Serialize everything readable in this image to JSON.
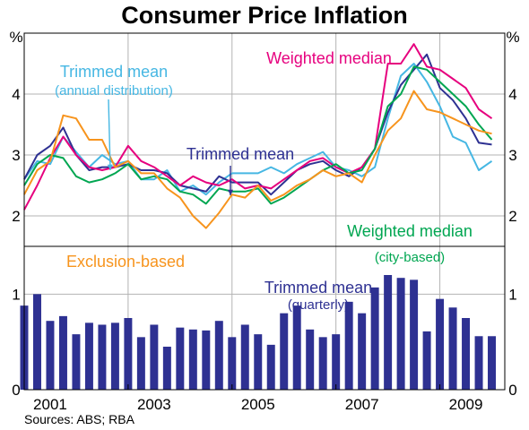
{
  "title": "Consumer Price Inflation",
  "source": "Sources: ABS; RBA",
  "chart_data": {
    "type": "line",
    "unit_label": "%",
    "x_ticks": [
      "2001",
      "2003",
      "2005",
      "2007",
      "2009"
    ],
    "x_tick_years": [
      2001,
      2003,
      2005,
      2007,
      2009
    ],
    "xlim": [
      2000.5,
      2009.75
    ],
    "upper_panel": {
      "ylim": [
        1.5,
        5.0
      ],
      "y_ticks": [
        2,
        3,
        4
      ],
      "grid": true,
      "series": [
        {
          "label": "Trimmed mean",
          "sublabel": "(annual distribution)",
          "color": "#46b7e3",
          "x": [
            2000.5,
            2000.75,
            2001.0,
            2001.25,
            2001.5,
            2001.75,
            2002.0,
            2002.25,
            2002.5,
            2002.75,
            2003.0,
            2003.25,
            2003.5,
            2003.75,
            2004.0,
            2004.25,
            2004.5,
            2004.75,
            2005.0,
            2005.25,
            2005.5,
            2005.75,
            2006.0,
            2006.25,
            2006.5,
            2006.75,
            2007.0,
            2007.25,
            2007.5,
            2007.75,
            2008.0,
            2008.25,
            2008.5,
            2008.75,
            2009.0,
            2009.25,
            2009.5
          ],
          "values": [
            2.6,
            2.9,
            2.85,
            3.3,
            3.05,
            2.8,
            3.0,
            2.85,
            2.9,
            2.6,
            2.6,
            2.75,
            2.4,
            2.5,
            2.35,
            2.55,
            2.7,
            2.7,
            2.7,
            2.8,
            2.7,
            2.85,
            2.95,
            3.05,
            2.8,
            2.75,
            2.65,
            2.8,
            3.6,
            4.3,
            4.5,
            4.2,
            3.8,
            3.3,
            3.2,
            2.75,
            2.9
          ]
        },
        {
          "label": "Trimmed mean",
          "color": "#2e3192",
          "x": [
            2000.5,
            2000.75,
            2001.0,
            2001.25,
            2001.5,
            2001.75,
            2002.0,
            2002.25,
            2002.5,
            2002.75,
            2003.0,
            2003.25,
            2003.5,
            2003.75,
            2004.0,
            2004.25,
            2004.5,
            2004.75,
            2005.0,
            2005.25,
            2005.5,
            2005.75,
            2006.0,
            2006.25,
            2006.5,
            2006.75,
            2007.0,
            2007.25,
            2007.5,
            2007.75,
            2008.0,
            2008.25,
            2008.5,
            2008.75,
            2009.0,
            2009.25,
            2009.5
          ],
          "values": [
            2.6,
            3.0,
            3.15,
            3.45,
            3.0,
            2.75,
            2.8,
            2.8,
            2.85,
            2.75,
            2.75,
            2.7,
            2.5,
            2.45,
            2.4,
            2.65,
            2.55,
            2.55,
            2.55,
            2.35,
            2.55,
            2.75,
            2.85,
            2.9,
            2.75,
            2.65,
            2.8,
            3.1,
            3.7,
            4.15,
            4.4,
            4.65,
            4.1,
            3.9,
            3.6,
            3.2,
            3.17
          ]
        },
        {
          "label": "Weighted median",
          "color": "#e6007e",
          "x": [
            2000.5,
            2000.75,
            2001.0,
            2001.25,
            2001.5,
            2001.75,
            2002.0,
            2002.25,
            2002.5,
            2002.75,
            2003.0,
            2003.25,
            2003.5,
            2003.75,
            2004.0,
            2004.25,
            2004.5,
            2004.75,
            2005.0,
            2005.25,
            2005.5,
            2005.75,
            2006.0,
            2006.25,
            2006.5,
            2006.75,
            2007.0,
            2007.25,
            2007.5,
            2007.75,
            2008.0,
            2008.25,
            2008.5,
            2008.75,
            2009.0,
            2009.25,
            2009.5
          ],
          "values": [
            2.1,
            2.5,
            2.95,
            3.3,
            3.0,
            2.8,
            2.75,
            2.8,
            3.15,
            2.9,
            2.8,
            2.65,
            2.5,
            2.65,
            2.55,
            2.5,
            2.6,
            2.45,
            2.5,
            2.45,
            2.6,
            2.75,
            2.9,
            2.95,
            2.8,
            2.7,
            2.8,
            3.1,
            4.5,
            4.5,
            4.82,
            4.45,
            4.4,
            4.25,
            4.1,
            3.75,
            3.6
          ]
        },
        {
          "label": "Weighted median",
          "sublabel": "(city-based)",
          "color": "#00a651",
          "x": [
            2000.5,
            2000.75,
            2001.0,
            2001.25,
            2001.5,
            2001.75,
            2002.0,
            2002.25,
            2002.5,
            2002.75,
            2003.0,
            2003.25,
            2003.5,
            2003.75,
            2004.0,
            2004.25,
            2004.5,
            2004.75,
            2005.0,
            2005.25,
            2005.5,
            2005.75,
            2006.0,
            2006.25,
            2006.5,
            2006.75,
            2007.0,
            2007.25,
            2007.5,
            2007.75,
            2008.0,
            2008.25,
            2008.5,
            2008.75,
            2009.0,
            2009.25,
            2009.5
          ],
          "values": [
            2.5,
            2.85,
            3.0,
            2.95,
            2.65,
            2.55,
            2.6,
            2.7,
            2.85,
            2.6,
            2.65,
            2.6,
            2.4,
            2.35,
            2.2,
            2.45,
            2.4,
            2.4,
            2.45,
            2.2,
            2.3,
            2.45,
            2.6,
            2.75,
            2.85,
            2.7,
            2.75,
            3.1,
            3.8,
            4.0,
            4.45,
            4.4,
            4.2,
            4.0,
            3.8,
            3.5,
            3.25
          ]
        },
        {
          "label": "Exclusion-based",
          "color": "#f7941d",
          "x": [
            2000.5,
            2000.75,
            2001.0,
            2001.25,
            2001.5,
            2001.75,
            2002.0,
            2002.25,
            2002.5,
            2002.75,
            2003.0,
            2003.25,
            2003.5,
            2003.75,
            2004.0,
            2004.25,
            2004.5,
            2004.75,
            2005.0,
            2005.25,
            2005.5,
            2005.75,
            2006.0,
            2006.25,
            2006.5,
            2006.75,
            2007.0,
            2007.25,
            2007.5,
            2007.75,
            2008.0,
            2008.25,
            2008.5,
            2008.75,
            2009.0,
            2009.25,
            2009.5
          ],
          "values": [
            2.35,
            2.75,
            2.9,
            3.65,
            3.6,
            3.25,
            3.25,
            2.8,
            2.9,
            2.7,
            2.7,
            2.45,
            2.3,
            2.0,
            1.8,
            2.05,
            2.35,
            2.3,
            2.5,
            2.25,
            2.35,
            2.5,
            2.6,
            2.75,
            2.65,
            2.7,
            2.55,
            3.0,
            3.4,
            3.6,
            4.05,
            3.75,
            3.7,
            3.6,
            3.5,
            3.4,
            3.35
          ]
        }
      ]
    },
    "lower_panel": {
      "type": "bar",
      "ylim": [
        0,
        1.5
      ],
      "y_ticks": [
        0,
        1
      ],
      "label": "Trimmed mean",
      "sublabel": "(quarterly)",
      "color": "#2e3192",
      "x": [
        2000.5,
        2000.75,
        2001.0,
        2001.25,
        2001.5,
        2001.75,
        2002.0,
        2002.25,
        2002.5,
        2002.75,
        2003.0,
        2003.25,
        2003.5,
        2003.75,
        2004.0,
        2004.25,
        2004.5,
        2004.75,
        2005.0,
        2005.25,
        2005.5,
        2005.75,
        2006.0,
        2006.25,
        2006.5,
        2006.75,
        2007.0,
        2007.25,
        2007.5,
        2007.75,
        2008.0,
        2008.25,
        2008.5,
        2008.75,
        2009.0,
        2009.25,
        2009.5
      ],
      "values": [
        0.88,
        1.0,
        0.72,
        0.77,
        0.58,
        0.7,
        0.68,
        0.7,
        0.75,
        0.55,
        0.68,
        0.45,
        0.65,
        0.63,
        0.62,
        0.72,
        0.55,
        0.68,
        0.58,
        0.47,
        0.8,
        0.88,
        0.63,
        0.55,
        0.58,
        0.92,
        0.8,
        1.07,
        1.2,
        1.17,
        1.15,
        0.61,
        0.95,
        0.86,
        0.75,
        0.56,
        0.56
      ]
    }
  },
  "annotations": [
    {
      "name": "label-trimmed-mean-annual",
      "text": "Trimmed mean",
      "series": 0
    },
    {
      "name": "label-trimmed-mean-annual-sub",
      "text": "(annual distribution)",
      "series": 0
    },
    {
      "name": "label-trimmed-mean",
      "text": "Trimmed mean",
      "series": 1
    },
    {
      "name": "label-weighted-median",
      "text": "Weighted median",
      "series": 2
    },
    {
      "name": "label-weighted-median-city",
      "text": "Weighted median",
      "series": 3
    },
    {
      "name": "label-weighted-median-city-sub",
      "text": "(city-based)",
      "series": 3
    },
    {
      "name": "label-exclusion-based",
      "text": "Exclusion-based",
      "series": 4
    },
    {
      "name": "label-trimmed-mean-quarterly",
      "text": "Trimmed mean",
      "series": "bars"
    },
    {
      "name": "label-trimmed-mean-quarterly-sub",
      "text": "(quarterly)",
      "series": "bars"
    }
  ]
}
